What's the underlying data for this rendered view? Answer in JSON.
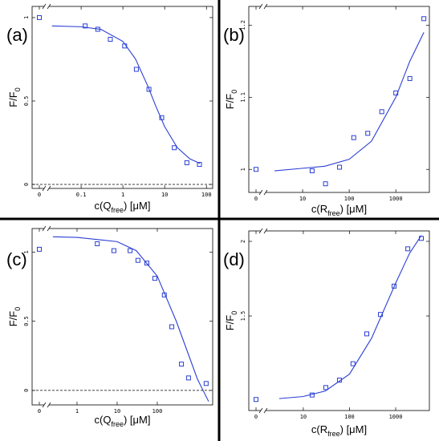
{
  "chart_data": [
    {
      "type": "scatter",
      "panel": "(a)",
      "xlabel": {
        "main": "c(Q",
        "sub": "free",
        "tail": ") [μM]"
      },
      "ylabel": {
        "main": "F/F",
        "sub": "0"
      },
      "xscale": "log",
      "x_break": true,
      "xlim": [
        0.0067,
        141
      ],
      "xticks": [
        0,
        0.1,
        1,
        10,
        100
      ],
      "ylim": [
        -0.024,
        1.067
      ],
      "yticks": [
        0,
        0.5,
        1
      ],
      "hline": 0,
      "color": "#2a3fd4",
      "points": {
        "x": [
          0,
          0.125,
          0.25,
          0.5,
          1.1,
          2.1,
          4.2,
          8.5,
          17,
          34,
          68
        ],
        "y": [
          1.0,
          0.95,
          0.93,
          0.87,
          0.83,
          0.69,
          0.57,
          0.4,
          0.22,
          0.13,
          0.12
        ]
      },
      "fit": {
        "x": [
          0.02,
          0.1,
          0.3,
          1,
          2,
          4,
          6,
          10,
          20,
          40,
          70
        ],
        "y": [
          0.95,
          0.945,
          0.929,
          0.857,
          0.752,
          0.586,
          0.475,
          0.346,
          0.221,
          0.153,
          0.126
        ]
      }
    },
    {
      "type": "scatter",
      "panel": "(b)",
      "xlabel": {
        "main": "c(R",
        "sub": "free",
        "tail": ") [μM]"
      },
      "ylabel": {
        "main": "F/F",
        "sub": "0"
      },
      "xscale": "log",
      "x_break": true,
      "xlim": [
        0.7,
        5250
      ],
      "xticks": [
        0,
        10,
        100,
        1000
      ],
      "ylim": [
        0.968,
        1.226
      ],
      "yticks": [
        1,
        1.1,
        1.2
      ],
      "color": "#2a3fd4",
      "points": {
        "x": [
          0,
          16,
          31,
          62,
          125,
          250,
          500,
          1000,
          2000,
          4000
        ],
        "y": [
          1.0,
          0.998,
          0.98,
          1.003,
          1.044,
          1.05,
          1.08,
          1.106,
          1.126,
          1.209
        ]
      },
      "fit": {
        "x": [
          2.5,
          10,
          30,
          100,
          300,
          1000,
          2000,
          4000
        ],
        "y": [
          0.998,
          1.0015,
          1.0044,
          1.014,
          1.039,
          1.1,
          1.15,
          1.19
        ]
      }
    },
    {
      "type": "scatter",
      "panel": "(c)",
      "xlabel": {
        "main": "c(Q",
        "sub": "free",
        "tail": ") [μM]"
      },
      "ylabel": {
        "main": "F/F",
        "sub": "0"
      },
      "xscale": "log",
      "x_break": true,
      "xlim": [
        0.076,
        2400
      ],
      "xticks": [
        0,
        1,
        10,
        100
      ],
      "ylim": [
        -0.105,
        1.17
      ],
      "yticks": [
        0,
        0.5,
        1
      ],
      "hline": 0,
      "color": "#2a3fd4",
      "points": {
        "x": [
          0,
          3.2,
          8.3,
          21,
          33,
          55,
          87,
          150,
          230,
          400,
          600,
          1650
        ],
        "y": [
          1.02,
          1.06,
          1.01,
          1.01,
          0.94,
          0.92,
          0.81,
          0.69,
          0.46,
          0.19,
          0.09,
          0.05
        ]
      },
      "fit": {
        "x": [
          0.25,
          1,
          10,
          30,
          100,
          300,
          1000,
          1900
        ],
        "y": [
          1.11,
          1.106,
          1.075,
          1.01,
          0.826,
          0.497,
          0.082,
          -0.08
        ]
      }
    },
    {
      "type": "scatter",
      "panel": "(d)",
      "xlabel": {
        "main": "c(R",
        "sub": "free",
        "tail": ") [μM]"
      },
      "ylabel": {
        "main": "F/F",
        "sub": "0"
      },
      "xscale": "log",
      "x_break": true,
      "xlim": [
        0.66,
        5370
      ],
      "xticks": [
        0,
        10,
        100,
        1000
      ],
      "ylim": [
        0.866,
        2.07
      ],
      "yticks": [
        1.5,
        2
      ],
      "color": "#2a3fd4",
      "points": {
        "x": [
          0,
          15.5,
          30.7,
          60.6,
          119,
          237,
          468,
          925,
          1830,
          3600
        ],
        "y": [
          0.94,
          0.97,
          1.02,
          1.07,
          1.18,
          1.38,
          1.51,
          1.7,
          1.95,
          2.02
        ]
      },
      "fit": {
        "x": [
          3,
          10,
          30,
          100,
          300,
          1000,
          2000,
          3600
        ],
        "y": [
          0.946,
          0.96,
          0.997,
          1.11,
          1.35,
          1.72,
          1.92,
          2.04
        ]
      }
    }
  ]
}
